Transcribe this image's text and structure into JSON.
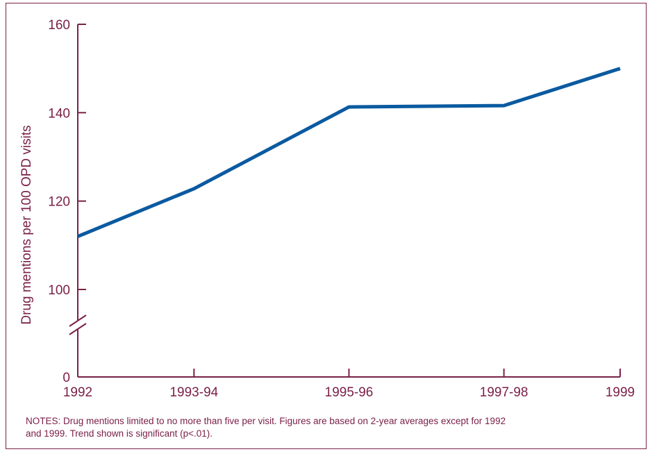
{
  "chart_data": {
    "type": "line",
    "ylabel": "Drug mentions per 100 OPD visits",
    "xlabel": "",
    "categories": [
      "1992",
      "1993-94",
      "1995-96",
      "1997-98",
      "1999"
    ],
    "x_positions": [
      1992,
      1993.5,
      1995.5,
      1997.5,
      1999
    ],
    "series": [
      {
        "values": [
          112,
          122.8,
          141.3,
          141.6,
          150
        ]
      }
    ],
    "yticks": [
      0,
      100,
      120,
      140,
      160
    ],
    "ylim": [
      92,
      160
    ],
    "axis_break": true,
    "grid": false
  },
  "notes": "NOTES:  Drug mentions limited to no more than five per visit.  Figures are based on 2-year averages except for 1992 and 1999.  Trend shown is significant (p<.01).",
  "colors": {
    "axis": "#7a2048",
    "line": "#0a5aa0"
  }
}
